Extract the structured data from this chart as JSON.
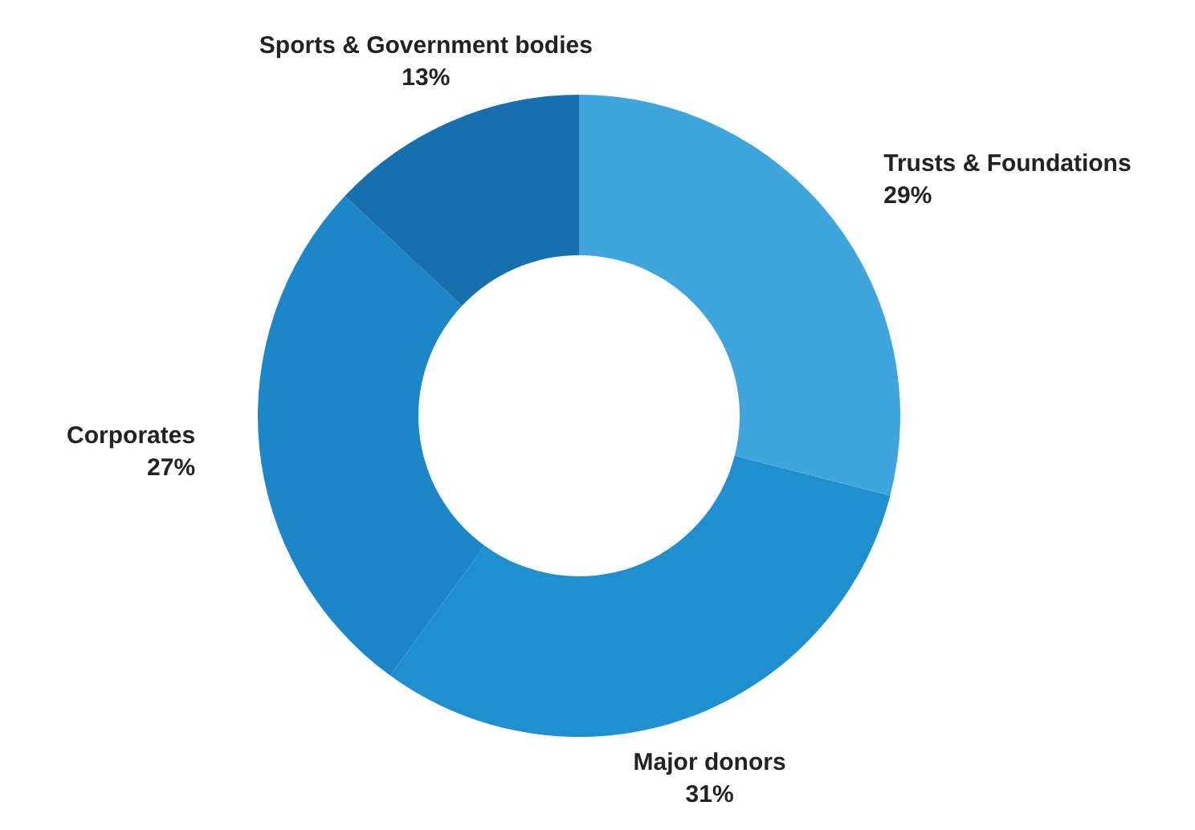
{
  "chart_data": {
    "type": "donut",
    "categories": [
      "Trusts & Foundations",
      "Major donors",
      "Corporates",
      "Sports & Government bodies"
    ],
    "values": [
      29,
      31,
      27,
      13
    ],
    "colors": [
      "#3fa6dd",
      "#1f8fcf",
      "#1b86c8",
      "#176fad"
    ],
    "value_labels": [
      "29%",
      "31%",
      "27%",
      "13%"
    ]
  }
}
